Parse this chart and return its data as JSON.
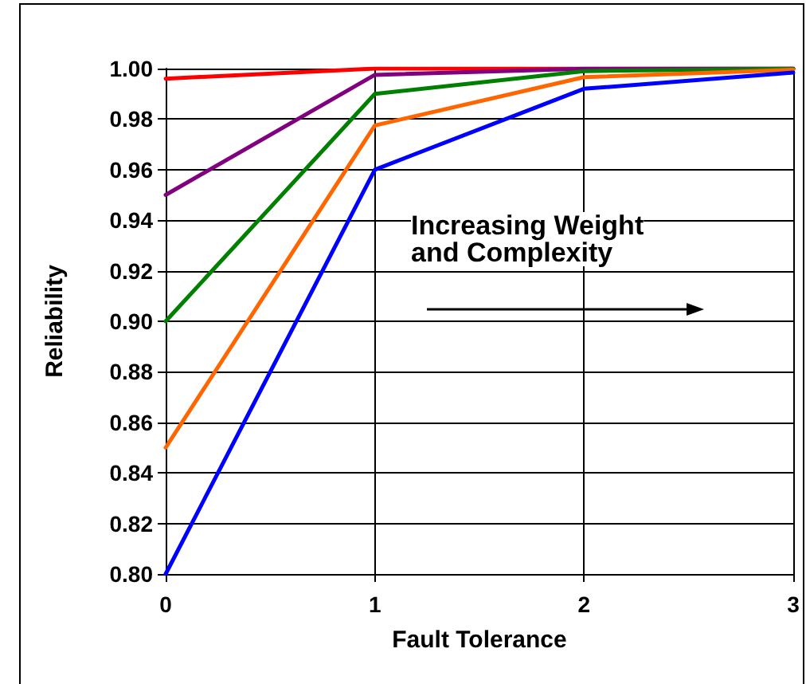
{
  "chart_data": {
    "type": "line",
    "xlabel": "Fault Tolerance",
    "ylabel": "Reliability",
    "x": [
      0,
      1,
      2,
      3
    ],
    "series": [
      {
        "color": "#ff0000",
        "values": [
          0.996,
          1.0,
          1.0,
          1.0
        ]
      },
      {
        "color": "#800080",
        "values": [
          0.95,
          0.9975,
          0.9999,
          1.0
        ]
      },
      {
        "color": "#008000",
        "values": [
          0.9,
          0.99,
          0.999,
          0.9999
        ]
      },
      {
        "color": "#ff6600",
        "values": [
          0.85,
          0.9775,
          0.9966,
          0.9995
        ]
      },
      {
        "color": "#0000ff",
        "values": [
          0.8,
          0.96,
          0.992,
          0.9984
        ]
      }
    ],
    "xlim": [
      0,
      3
    ],
    "xticks": [
      0,
      1,
      2,
      3
    ],
    "ylim": [
      0.8,
      1.0
    ],
    "yticks": [
      {
        "value": 0.8,
        "label": "0.80"
      },
      {
        "value": 0.82,
        "label": "0.82"
      },
      {
        "value": 0.84,
        "label": "0.84"
      },
      {
        "value": 0.86,
        "label": "0.86"
      },
      {
        "value": 0.88,
        "label": "0.88"
      },
      {
        "value": 0.9,
        "label": "0.90"
      },
      {
        "value": 0.92,
        "label": "0.92"
      },
      {
        "value": 0.94,
        "label": "0.94"
      },
      {
        "value": 0.96,
        "label": "0.96"
      },
      {
        "value": 0.98,
        "label": "0.98"
      },
      {
        "value": 1.0,
        "label": "1.00"
      }
    ],
    "grid": true,
    "marker": "none",
    "line_style": "solid",
    "annotations": [
      "Increasing Weight\nand Complexity"
    ]
  }
}
